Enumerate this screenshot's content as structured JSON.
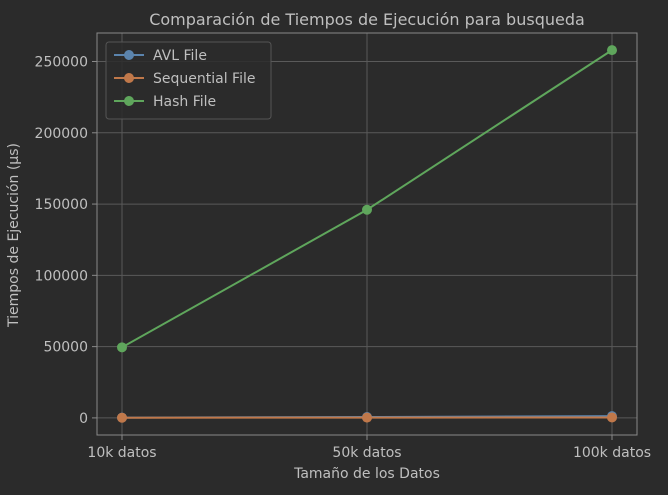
{
  "colors": {
    "background": "#2b2b2b",
    "axes_face": "#2b2b2b",
    "spine": "#8a8a8a",
    "grid": "#5a5a5a",
    "text": "#bfbfbf",
    "avl": "#5b84ad",
    "sequential": "#c0784a",
    "hash": "#5fa65c"
  },
  "chart_data": {
    "type": "line",
    "title": "Comparación de Tiempos de Ejecución para busqueda",
    "xlabel": "Tamaño de los Datos",
    "ylabel": "Tiempos de Ejecución (µs)",
    "categories": [
      "10k datos",
      "50k datos",
      "100k datos"
    ],
    "ylim": [
      -12000,
      270000
    ],
    "yticks": [
      0,
      50000,
      100000,
      150000,
      200000,
      250000
    ],
    "ytick_labels": [
      "0",
      "50000",
      "100000",
      "150000",
      "200000",
      "250000"
    ],
    "grid": true,
    "legend_position": "top-left",
    "marker": "circle",
    "series": [
      {
        "name": "AVL File",
        "color": "#5b84ad",
        "values": [
          200,
          600,
          1200
        ]
      },
      {
        "name": "Sequential File",
        "color": "#c0784a",
        "values": [
          100,
          200,
          300
        ]
      },
      {
        "name": "Hash File",
        "color": "#5fa65c",
        "values": [
          49500,
          146000,
          258000
        ]
      }
    ]
  }
}
